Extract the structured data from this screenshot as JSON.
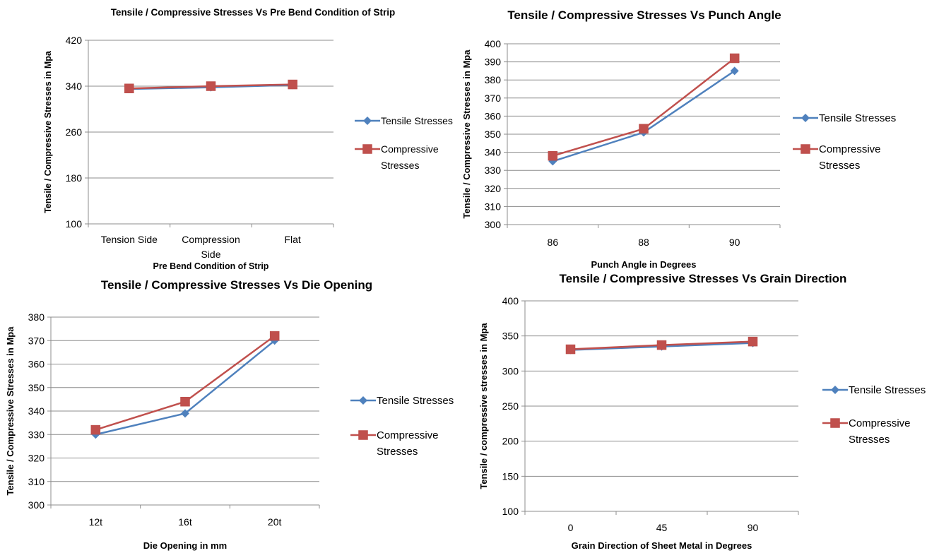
{
  "chart_data": [
    {
      "type": "line",
      "title": "Tensile / Compressive Stresses Vs Pre Bend Condition of Strip",
      "xlabel": "Pre Bend Condition of Strip",
      "ylabel": "Tensile / Compressive Stresses in Mpa",
      "categories": [
        "Tension Side",
        "Compression Side",
        "Flat"
      ],
      "ylim": [
        100,
        420
      ],
      "yticks": [
        100,
        180,
        260,
        340,
        420
      ],
      "grid": "horizontal",
      "legend_position": "right",
      "series": [
        {
          "name": "Tensile Stresses",
          "values": [
            335,
            338,
            342
          ],
          "color": "#4F81BD",
          "marker": "diamond"
        },
        {
          "name": "Compressive Stresses",
          "values": [
            336,
            340,
            343
          ],
          "color": "#C0504D",
          "marker": "square"
        }
      ]
    },
    {
      "type": "line",
      "title": "Tensile / Compressive Stresses Vs Punch Angle",
      "xlabel": "Punch Angle in Degrees",
      "ylabel": "Tensile / Compressive Stresses in Mpa",
      "categories": [
        "86",
        "88",
        "90"
      ],
      "ylim": [
        300,
        400
      ],
      "yticks": [
        300,
        310,
        320,
        330,
        340,
        350,
        360,
        370,
        380,
        390,
        400
      ],
      "grid": "horizontal",
      "legend_position": "right",
      "series": [
        {
          "name": "Tensile Stresses",
          "values": [
            335,
            351,
            385
          ],
          "color": "#4F81BD",
          "marker": "diamond"
        },
        {
          "name": "Compressive Stresses",
          "values": [
            338,
            353,
            392
          ],
          "color": "#C0504D",
          "marker": "square"
        }
      ]
    },
    {
      "type": "line",
      "title": "Tensile / Compressive Stresses Vs Die Opening",
      "xlabel": "Die Opening in mm",
      "ylabel": "Tensile / Compressive Stresses in Mpa",
      "categories": [
        "12t",
        "16t",
        "20t"
      ],
      "ylim": [
        300,
        380
      ],
      "yticks": [
        300,
        310,
        320,
        330,
        340,
        350,
        360,
        370,
        380
      ],
      "grid": "horizontal",
      "legend_position": "right",
      "series": [
        {
          "name": "Tensile Stresses",
          "values": [
            330,
            339,
            370
          ],
          "color": "#4F81BD",
          "marker": "diamond"
        },
        {
          "name": "Compressive Stresses",
          "values": [
            332,
            344,
            372
          ],
          "color": "#C0504D",
          "marker": "square"
        }
      ]
    },
    {
      "type": "line",
      "title": "Tensile / Compressive Stresses Vs Grain Direction",
      "xlabel": "Grain Direction of Sheet Metal in Degrees",
      "ylabel": "Tensile / compressive stresses in Mpa",
      "categories": [
        "0",
        "45",
        "90"
      ],
      "ylim": [
        100,
        400
      ],
      "yticks": [
        100,
        150,
        200,
        250,
        300,
        350,
        400
      ],
      "grid": "horizontal",
      "legend_position": "right",
      "series": [
        {
          "name": "Tensile Stresses",
          "values": [
            330,
            335,
            340
          ],
          "color": "#4F81BD",
          "marker": "diamond"
        },
        {
          "name": "Compressive Stresses",
          "values": [
            331,
            337,
            342
          ],
          "color": "#C0504D",
          "marker": "square"
        }
      ]
    }
  ]
}
